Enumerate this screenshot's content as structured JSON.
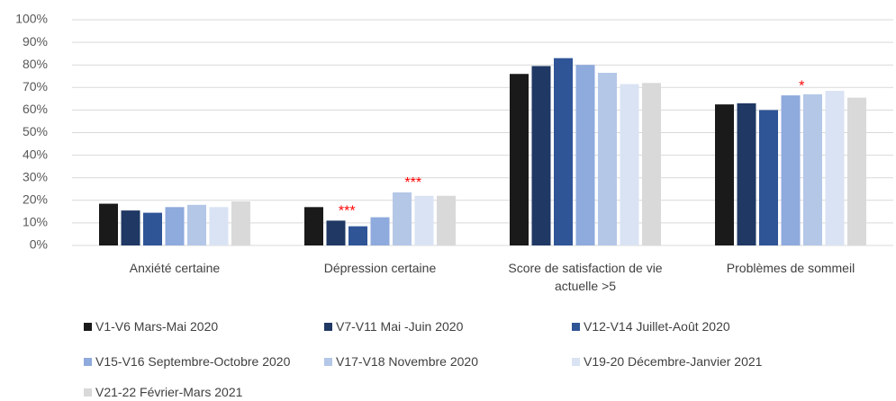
{
  "chart_data": {
    "type": "bar",
    "categories": [
      "Anxiété certaine",
      "Dépression certaine",
      "Score de satisfaction de vie actuelle >5",
      "Problèmes de sommeil"
    ],
    "series": [
      {
        "name": "V1-V6 Mars-Mai 2020",
        "color": "#1a1a1a",
        "values": [
          18.5,
          17,
          76,
          62.5
        ]
      },
      {
        "name": "V7-V11 Mai -Juin 2020",
        "color": "#1f3864",
        "values": [
          15.5,
          11,
          79.5,
          63
        ]
      },
      {
        "name": "V12-V14 Juillet-Août 2020",
        "color": "#2f5597",
        "values": [
          14.5,
          8.5,
          83,
          60
        ]
      },
      {
        "name": "V15-V16 Septembre-Octobre 2020",
        "color": "#8faadc",
        "values": [
          17,
          12.5,
          80,
          66.5
        ]
      },
      {
        "name": "V17-V18 Novembre 2020",
        "color": "#b4c7e7",
        "values": [
          18,
          23.5,
          76.5,
          67
        ]
      },
      {
        "name": "V19-20 Décembre-Janvier 2021",
        "color": "#dae3f3",
        "values": [
          17,
          22,
          71.5,
          68.5
        ]
      },
      {
        "name": "V21-22 Février-Mars 2021",
        "color": "#d9d9d9",
        "values": [
          19.5,
          22,
          72,
          65.5
        ]
      }
    ],
    "annotations": [
      {
        "text": "***",
        "category": "Dépression certaine",
        "series": "V7-V11 Mai -Juin 2020"
      },
      {
        "text": "***",
        "category": "Dépression certaine",
        "series": "V17-V18 Novembre 2020"
      },
      {
        "text": "*",
        "category": "Problèmes de sommeil",
        "series": "V15-V16 Septembre-Octobre 2020"
      }
    ],
    "ylim": [
      0,
      100
    ],
    "yticks": [
      {
        "value": 0,
        "label": "0%"
      },
      {
        "value": 10,
        "label": "10%"
      },
      {
        "value": 20,
        "label": "20%"
      },
      {
        "value": 30,
        "label": "30%"
      },
      {
        "value": 40,
        "label": "40%"
      },
      {
        "value": 50,
        "label": "50%"
      },
      {
        "value": 60,
        "label": "60%"
      },
      {
        "value": 70,
        "label": "70%"
      },
      {
        "value": 80,
        "label": "80%"
      },
      {
        "value": 90,
        "label": "90%"
      },
      {
        "value": 100,
        "label": "100%"
      }
    ],
    "grid": true,
    "legend": "bottom"
  }
}
